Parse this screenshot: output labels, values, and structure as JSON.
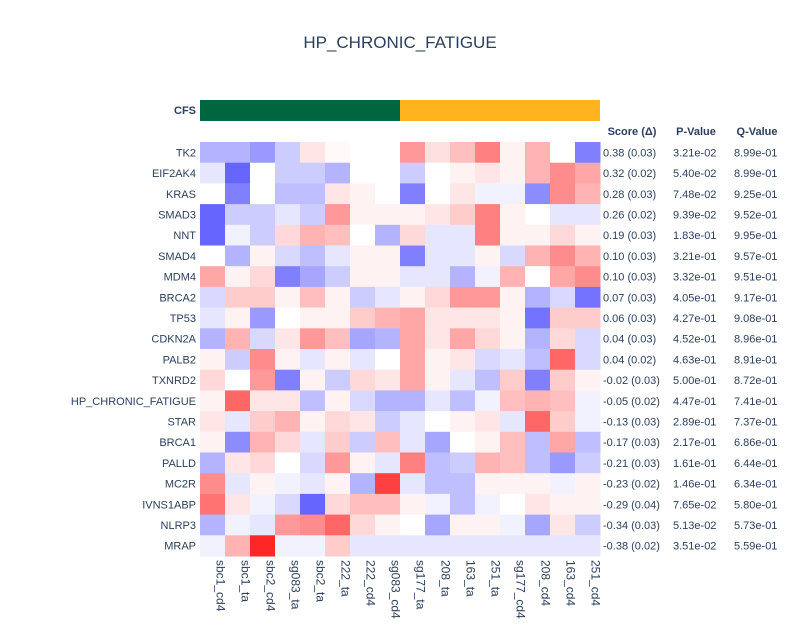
{
  "chart_data": {
    "type": "heatmap",
    "title": "HP_CHRONIC_FATIGUE",
    "group_label": "CFS",
    "groups": [
      {
        "count": 8,
        "color": "#006640"
      },
      {
        "count": 8,
        "color": "#ffb31f"
      }
    ],
    "columns": [
      "sbc1_cd4",
      "sbc1_ta",
      "sbc2_cd4",
      "sg083_ta",
      "sbc2_ta",
      "222_ta",
      "222_cd4",
      "sg083_cd4",
      "sg177_ta",
      "208_ta",
      "163_ta",
      "251_ta",
      "sg177_cd4",
      "208_cd4",
      "163_cd4",
      "251_cd4"
    ],
    "rows": [
      "TK2",
      "EIF2AK4",
      "KRAS",
      "SMAD3",
      "NNT",
      "SMAD4",
      "MDM4",
      "BRCA2",
      "TP53",
      "CDKN2A",
      "PALB2",
      "TXNRD2",
      "HP_CHRONIC_FATIGUE",
      "STAR",
      "BRCA1",
      "PALLD",
      "MC2R",
      "IVNS1ABP",
      "NLRP3",
      "MRAP"
    ],
    "table_headers": [
      "Score (Δ)",
      "P-Value",
      "Q-Value"
    ],
    "scores": [
      "0.38 (0.03)",
      "0.32 (0.02)",
      "0.28 (0.03)",
      "0.26 (0.02)",
      "0.19 (0.03)",
      "0.10 (0.03)",
      "0.10 (0.03)",
      "0.07 (0.03)",
      "0.06 (0.03)",
      "0.04 (0.03)",
      "0.04 (0.02)",
      "-0.02 (0.03)",
      "-0.05 (0.02)",
      "-0.13 (0.03)",
      "-0.17 (0.03)",
      "-0.21 (0.03)",
      "-0.23 (0.02)",
      "-0.29 (0.04)",
      "-0.34 (0.03)",
      "-0.38 (0.02)"
    ],
    "pvalues": [
      "3.21e-02",
      "5.40e-02",
      "7.48e-02",
      "9.39e-02",
      "1.83e-01",
      "3.21e-01",
      "3.32e-01",
      "4.05e-01",
      "4.27e-01",
      "4.52e-01",
      "4.63e-01",
      "5.00e-01",
      "4.47e-01",
      "2.89e-01",
      "2.17e-01",
      "1.61e-01",
      "1.46e-01",
      "7.65e-02",
      "5.13e-02",
      "3.51e-02"
    ],
    "qvalues": [
      "8.99e-01",
      "8.99e-01",
      "9.25e-01",
      "9.52e-01",
      "9.95e-01",
      "9.57e-01",
      "9.51e-01",
      "9.17e-01",
      "9.08e-01",
      "8.96e-01",
      "8.91e-01",
      "8.72e-01",
      "7.41e-01",
      "7.37e-01",
      "6.86e-01",
      "6.44e-01",
      "6.34e-01",
      "5.80e-01",
      "5.73e-01",
      "5.59e-01"
    ],
    "colorscale": {
      "low": "#0000ff",
      "mid": "#ffffff",
      "high": "#ff0000",
      "range": [
        -1,
        1
      ]
    },
    "values": [
      [
        -0.3,
        -0.3,
        -0.4,
        -0.2,
        0.1,
        0.02,
        0,
        0,
        0.4,
        0.12,
        0.25,
        0.5,
        0.05,
        0.3,
        0,
        -0.5
      ],
      [
        -0.1,
        -0.6,
        0,
        -0.2,
        -0.2,
        -0.3,
        0,
        0,
        -0.2,
        0,
        0.05,
        0.1,
        0.05,
        0.3,
        0.45,
        0.35
      ],
      [
        0,
        -0.5,
        0,
        -0.25,
        -0.25,
        0.1,
        0.05,
        0,
        -0.5,
        0,
        0.1,
        -0.05,
        -0.05,
        -0.45,
        0.45,
        0.3
      ],
      [
        -0.6,
        -0.2,
        -0.2,
        -0.1,
        -0.2,
        0.4,
        0.05,
        0.05,
        0.05,
        0.1,
        0.2,
        0.5,
        0.05,
        0,
        -0.1,
        -0.1
      ],
      [
        -0.6,
        -0.05,
        -0.2,
        0.15,
        0.3,
        0.25,
        0,
        -0.3,
        0.15,
        -0.1,
        -0.1,
        0.5,
        0.05,
        0.05,
        0.15,
        0.05
      ],
      [
        0,
        -0.3,
        0.05,
        -0.15,
        -0.25,
        -0.1,
        0.05,
        0.05,
        -0.5,
        -0.1,
        -0.1,
        0.05,
        -0.15,
        0.3,
        0.45,
        0.3
      ],
      [
        0.35,
        0.05,
        0.15,
        -0.5,
        -0.35,
        -0.2,
        0.05,
        0.05,
        -0.1,
        -0.1,
        -0.3,
        -0.05,
        0.3,
        0,
        0.35,
        0.45
      ],
      [
        -0.15,
        0.2,
        0.2,
        0.05,
        0.25,
        0.05,
        -0.2,
        -0.1,
        0.05,
        0.15,
        0.4,
        0.4,
        0.05,
        -0.3,
        -0.15,
        -0.55
      ],
      [
        -0.1,
        0.05,
        -0.4,
        0,
        0.05,
        0.05,
        0.2,
        0.3,
        0.35,
        0.1,
        0.1,
        0.1,
        0.05,
        -0.55,
        0.2,
        0.2
      ],
      [
        -0.3,
        0.3,
        -0.15,
        0.1,
        0.4,
        0.25,
        -0.35,
        -0.3,
        0.35,
        0.1,
        0.35,
        0.15,
        0.05,
        -0.3,
        0.15,
        -0.15
      ],
      [
        0.05,
        -0.2,
        0.45,
        0.05,
        -0.1,
        0.05,
        -0.1,
        0,
        0.35,
        0.05,
        0.1,
        -0.15,
        -0.1,
        -0.25,
        0.6,
        -0.15
      ],
      [
        0.15,
        0,
        0.4,
        -0.5,
        0.05,
        -0.2,
        0.15,
        0.1,
        0.35,
        0.05,
        -0.1,
        -0.25,
        0.2,
        -0.5,
        0.2,
        0.05
      ],
      [
        0.05,
        0.6,
        0.1,
        0.1,
        -0.25,
        0.05,
        -0.15,
        -0.3,
        -0.3,
        -0.1,
        -0.25,
        -0.05,
        0.25,
        0.3,
        0.25,
        -0.05
      ],
      [
        0.1,
        -0.1,
        0.2,
        0.3,
        0.05,
        0.15,
        0.1,
        -0.2,
        -0.1,
        0,
        0.05,
        0.1,
        -0.1,
        0.6,
        0.2,
        -0.05
      ],
      [
        0.05,
        -0.45,
        0.3,
        0.15,
        -0.1,
        0.2,
        -0.2,
        0.25,
        -0.1,
        -0.35,
        0,
        0.05,
        0.25,
        -0.25,
        0.35,
        -0.25
      ],
      [
        -0.3,
        0.1,
        0.15,
        0,
        -0.15,
        0.4,
        0.05,
        -0.1,
        0.5,
        -0.25,
        -0.2,
        0.3,
        0.25,
        -0.25,
        -0.4,
        -0.2
      ],
      [
        0.45,
        -0.1,
        0.05,
        -0.05,
        -0.1,
        0.05,
        -0.3,
        0.75,
        -0.1,
        -0.25,
        -0.25,
        0.05,
        0.05,
        0.05,
        -0.05,
        0.05
      ],
      [
        0.55,
        0.1,
        -0.05,
        -0.15,
        -0.6,
        0.15,
        0.25,
        0.25,
        0.05,
        -0.05,
        -0.25,
        -0.05,
        0,
        0.1,
        0.05,
        0.05
      ],
      [
        -0.3,
        -0.05,
        -0.1,
        0.4,
        0.45,
        0.6,
        0.15,
        0.05,
        0,
        -0.35,
        0.05,
        0.05,
        -0.05,
        -0.35,
        0.1,
        -0.2
      ],
      [
        -0.05,
        0.3,
        0.85,
        -0.05,
        -0.05,
        0.2,
        -0.1,
        -0.1,
        -0.1,
        -0.1,
        -0.1,
        -0.1,
        -0.1,
        -0.1,
        -0.1,
        -0.1
      ]
    ]
  }
}
